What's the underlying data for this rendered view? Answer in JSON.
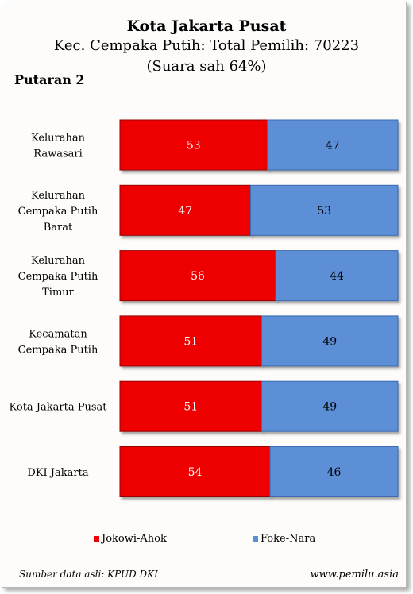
{
  "header": {
    "title": "Kota Jakarta Pusat",
    "subtitle": "Kec. Cempaka Putih: Total Pemilih: 70223",
    "subtitle2": "(Suara sah 64%)",
    "round": "Putaran 2"
  },
  "chart_data": {
    "type": "bar",
    "orientation": "horizontal",
    "stacked": true,
    "categories": [
      [
        "Kelurahan",
        "Rawasari"
      ],
      [
        "Kelurahan",
        "Cempaka Putih",
        "Barat"
      ],
      [
        "Kelurahan",
        "Cempaka Putih",
        "Timur"
      ],
      [
        "Kecamatan",
        "Cempaka Putih"
      ],
      [
        "Kota Jakarta Pusat"
      ],
      [
        "DKI Jakarta"
      ]
    ],
    "series": [
      {
        "name": "Jokowi-Ahok",
        "color": "#ee0000",
        "values": [
          53,
          47,
          56,
          51,
          51,
          54
        ]
      },
      {
        "name": "Foke-Nara",
        "color": "#5b8fd6",
        "values": [
          47,
          53,
          44,
          49,
          49,
          46
        ]
      }
    ],
    "xlim": [
      0,
      100
    ],
    "legend_position": "bottom",
    "grid": false
  },
  "footer": {
    "source": "Sumber data asli: KPUD DKI",
    "site": "www.pemilu.asia"
  }
}
